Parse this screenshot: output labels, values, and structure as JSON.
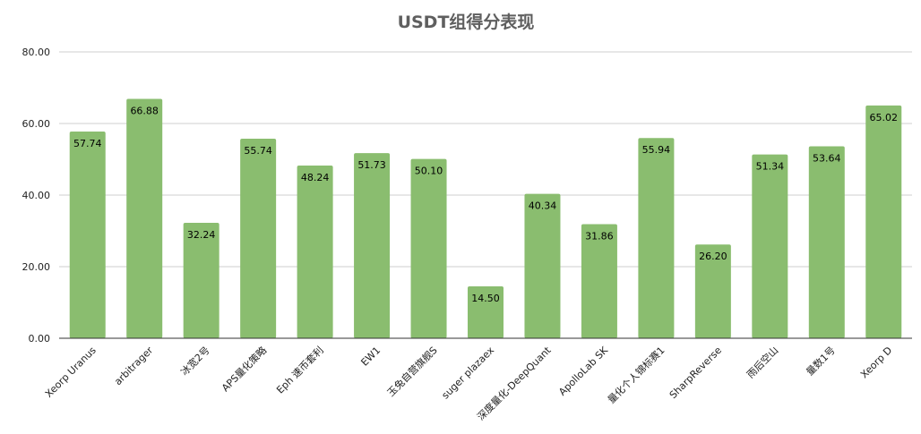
{
  "chart_data": {
    "type": "bar",
    "title": "USDT组得分表现",
    "xlabel": "",
    "ylabel": "",
    "ylim": [
      0,
      80
    ],
    "yticks": [
      "0.00",
      "20.00",
      "40.00",
      "60.00",
      "80.00"
    ],
    "grid": true,
    "legend": "none",
    "bar_color": "#8abd6f",
    "categories": [
      "Xeorp Uranus",
      "arbitrager",
      "冰宽2号",
      "APS量化策略",
      "Eph 速币套利",
      "EW1",
      "玉兔自营旗舰S",
      "suger plazaex",
      "深度量化-DeepQuant",
      "ApolloLab SK",
      "量化个人锦标赛1",
      "SharpReverse",
      "雨后空山",
      "量数1号",
      "Xeorp D"
    ],
    "values": [
      57.74,
      66.88,
      32.24,
      55.74,
      48.24,
      51.73,
      50.1,
      14.5,
      40.34,
      31.86,
      55.94,
      26.2,
      51.34,
      53.64,
      65.02
    ],
    "value_labels": [
      "57.74",
      "66.88",
      "32.24",
      "55.74",
      "48.24",
      "51.73",
      "50.10",
      "14.50",
      "40.34",
      "31.86",
      "55.94",
      "26.20",
      "51.34",
      "53.64",
      "65.02"
    ]
  }
}
